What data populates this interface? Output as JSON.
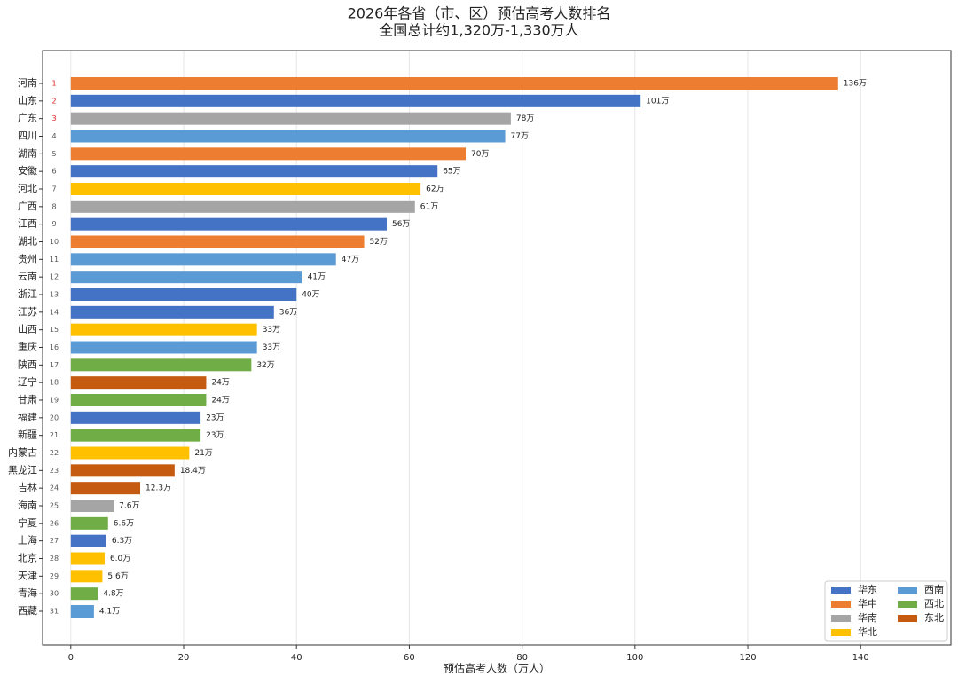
{
  "chart_data": {
    "type": "barh",
    "title": "2026年各省（市、区）预估高考人数排名",
    "subtitle": "全国总计约1,320万-1,330万人",
    "xlabel": "预估高考人数（万人）",
    "categories": [
      "河南",
      "山东",
      "广东",
      "四川",
      "湖南",
      "安徽",
      "河北",
      "广西",
      "江西",
      "湖北",
      "贵州",
      "云南",
      "浙江",
      "江苏",
      "山西",
      "重庆",
      "陕西",
      "辽宁",
      "甘肃",
      "福建",
      "新疆",
      "内蒙古",
      "黑龙江",
      "吉林",
      "海南",
      "宁夏",
      "上海",
      "北京",
      "天津",
      "青海",
      "西藏"
    ],
    "ranks": [
      1,
      2,
      3,
      4,
      5,
      6,
      7,
      8,
      9,
      10,
      11,
      12,
      13,
      14,
      15,
      16,
      17,
      18,
      19,
      20,
      21,
      22,
      23,
      24,
      25,
      26,
      27,
      28,
      29,
      30,
      31
    ],
    "rank_highlight_count": 3,
    "rank_highlight_color": "#e02020",
    "values": [
      136,
      101,
      78,
      77,
      70,
      65,
      62,
      61,
      56,
      52,
      47,
      41,
      40,
      36,
      33,
      33,
      32,
      24,
      24,
      23,
      23,
      21,
      18.4,
      12.3,
      7.6,
      6.6,
      6.3,
      6.0,
      5.6,
      4.8,
      4.1
    ],
    "value_labels": [
      "136万",
      "101万",
      "78万",
      "77万",
      "70万",
      "65万",
      "62万",
      "61万",
      "56万",
      "52万",
      "47万",
      "41万",
      "40万",
      "36万",
      "33万",
      "33万",
      "32万",
      "24万",
      "24万",
      "23万",
      "23万",
      "21万",
      "18.4万",
      "12.3万",
      "7.6万",
      "6.6万",
      "6.3万",
      "6.0万",
      "5.6万",
      "4.8万",
      "4.1万"
    ],
    "colors": [
      "#ed7d31",
      "#4472c4",
      "#a5a5a5",
      "#5b9bd5",
      "#ed7d31",
      "#4472c4",
      "#ffc000",
      "#a5a5a5",
      "#4472c4",
      "#ed7d31",
      "#5b9bd5",
      "#5b9bd5",
      "#4472c4",
      "#4472c4",
      "#ffc000",
      "#5b9bd5",
      "#70ad47",
      "#c55a11",
      "#70ad47",
      "#4472c4",
      "#70ad47",
      "#ffc000",
      "#c55a11",
      "#c55a11",
      "#a5a5a5",
      "#70ad47",
      "#4472c4",
      "#ffc000",
      "#ffc000",
      "#70ad47",
      "#5b9bd5"
    ],
    "legend": [
      {
        "name": "华东",
        "color": "#4472c4"
      },
      {
        "name": "华中",
        "color": "#ed7d31"
      },
      {
        "name": "华南",
        "color": "#a5a5a5"
      },
      {
        "name": "华北",
        "color": "#ffc000"
      },
      {
        "name": "西南",
        "color": "#5b9bd5"
      },
      {
        "name": "西北",
        "color": "#70ad47"
      },
      {
        "name": "东北",
        "color": "#c55a11"
      }
    ],
    "legend_position": "lower right",
    "xlim": [
      -5,
      156
    ],
    "xticks": [
      0,
      20,
      40,
      60,
      80,
      100,
      120,
      140
    ],
    "grid": true
  }
}
